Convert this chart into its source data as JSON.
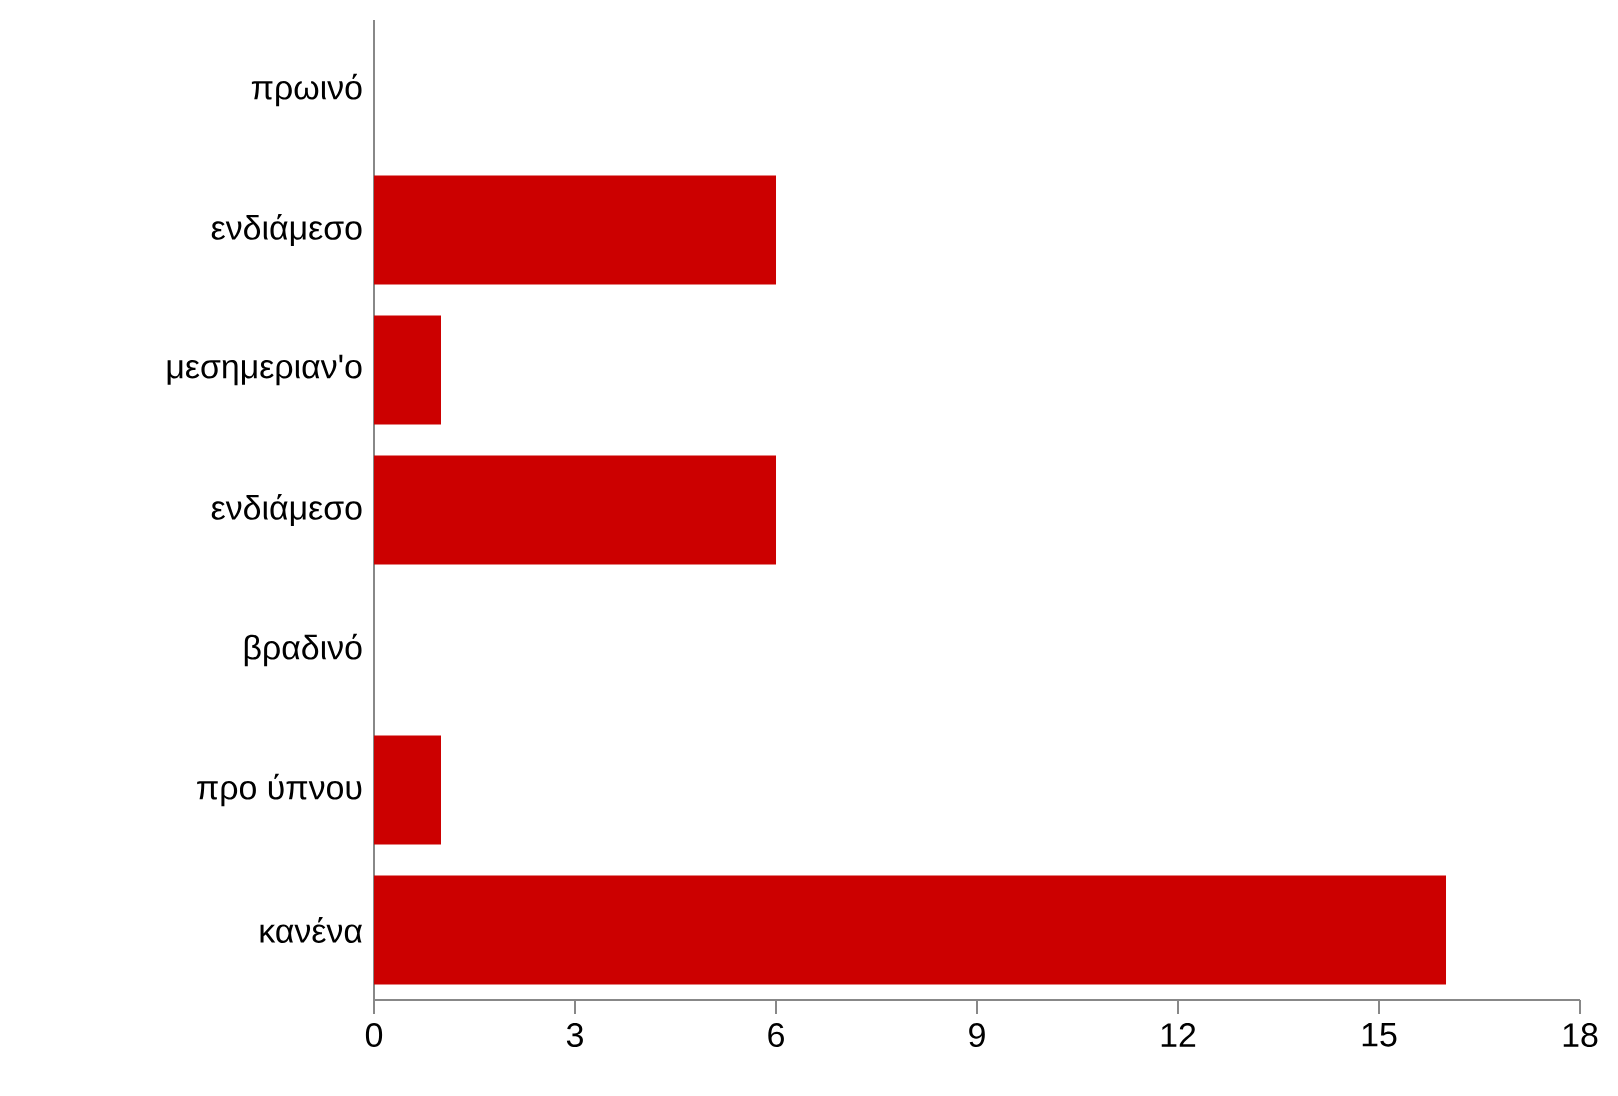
{
  "chart_data": {
    "type": "bar",
    "orientation": "horizontal",
    "categories": [
      "πρωινό",
      "ενδιάμεσο",
      "μεσημεριαν'ο",
      "ενδιάμεσο",
      "βραδινό",
      "προ ύπνου",
      "κανένα"
    ],
    "values": [
      0,
      6,
      1,
      6,
      0,
      1,
      16
    ],
    "color": "#cc0000",
    "xlim": [
      0,
      18
    ],
    "xticks": [
      0,
      3,
      6,
      9,
      12,
      15,
      18
    ],
    "grid": false
  }
}
